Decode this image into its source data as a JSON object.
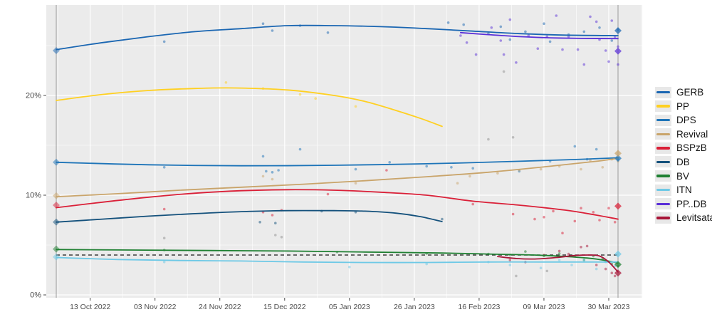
{
  "chart_data": {
    "type": "line",
    "title": "",
    "xlabel": "",
    "ylabel": "",
    "x_unit": "days since 02 Oct 2022 election",
    "x_domain_days": [
      0,
      182
    ],
    "ylim_pct": [
      0,
      29
    ],
    "grid": "on",
    "legend_position": "right",
    "y_ticks": [
      {
        "value": 0,
        "label": "0%"
      },
      {
        "value": 10,
        "label": "10%"
      },
      {
        "value": 20,
        "label": "20%"
      }
    ],
    "y_minor_values": [
      5,
      15,
      25
    ],
    "x_ticks": [
      {
        "day": 11,
        "label": "13 Oct 2022"
      },
      {
        "day": 32,
        "label": "03 Nov 2022"
      },
      {
        "day": 53,
        "label": "24 Nov 2022"
      },
      {
        "day": 74,
        "label": "15 Dec 2022"
      },
      {
        "day": 95,
        "label": "05 Jan 2023"
      },
      {
        "day": 116,
        "label": "26 Jan 2023"
      },
      {
        "day": 137,
        "label": "16 Feb 2023"
      },
      {
        "day": 158,
        "label": "09 Mar 2023"
      },
      {
        "day": 179,
        "label": "30 Mar 2023"
      }
    ],
    "election_day_lines": [
      0,
      182
    ],
    "threshold": {
      "value_pct": 4,
      "style": "dashed",
      "color": "#3d3d3d"
    },
    "colors": {
      "panel": "#ebebeb",
      "grid": "#ffffff",
      "vline": "#9b9b9b",
      "axis_text": "#4d4d4d"
    },
    "series": [
      {
        "name": "GERB",
        "color": "#1a66b2",
        "trend": [
          [
            0,
            24.6
          ],
          [
            15,
            25.3
          ],
          [
            30,
            25.9
          ],
          [
            45,
            26.4
          ],
          [
            60,
            26.7
          ],
          [
            75,
            27.0
          ],
          [
            90,
            27.0
          ],
          [
            105,
            26.9
          ],
          [
            120,
            26.7
          ],
          [
            135,
            26.45
          ],
          [
            150,
            26.2
          ],
          [
            165,
            26.05
          ],
          [
            182,
            26.0
          ]
        ],
        "points": [
          [
            35,
            25.4
          ],
          [
            67,
            27.2
          ],
          [
            70,
            26.5
          ],
          [
            79,
            27.0
          ],
          [
            88,
            26.3
          ],
          [
            127,
            27.3
          ],
          [
            132,
            27.1
          ],
          [
            140,
            26.2
          ],
          [
            144,
            26.9
          ],
          [
            147,
            25.6
          ],
          [
            152,
            26.4
          ],
          [
            158,
            27.2
          ],
          [
            160,
            25.4
          ],
          [
            166,
            26.1
          ],
          [
            171,
            26.4
          ],
          [
            176,
            26.8
          ],
          [
            180,
            25.5
          ],
          [
            182,
            26.6
          ]
        ],
        "start_diamond": 24.5,
        "end_diamond": 26.5
      },
      {
        "name": "PP",
        "color": "#ffd021",
        "trend": [
          [
            0,
            19.5
          ],
          [
            15,
            20.1
          ],
          [
            30,
            20.5
          ],
          [
            45,
            20.7
          ],
          [
            58,
            20.75
          ],
          [
            75,
            20.55
          ],
          [
            90,
            20.0
          ],
          [
            100,
            19.4
          ],
          [
            110,
            18.5
          ],
          [
            118,
            17.7
          ],
          [
            125,
            16.9
          ]
        ],
        "points": [
          [
            55,
            21.3
          ],
          [
            67,
            20.7
          ],
          [
            79,
            20.1
          ],
          [
            84,
            19.7
          ],
          [
            97,
            18.9
          ]
        ],
        "start_diamond": null,
        "end_diamond": null
      },
      {
        "name": "DPS",
        "color": "#1d74b8",
        "trend": [
          [
            0,
            13.3
          ],
          [
            30,
            13.05
          ],
          [
            60,
            12.95
          ],
          [
            90,
            13.0
          ],
          [
            120,
            13.15
          ],
          [
            150,
            13.4
          ],
          [
            170,
            13.6
          ],
          [
            182,
            13.75
          ]
        ],
        "points": [
          [
            35,
            12.8
          ],
          [
            67,
            13.9
          ],
          [
            68,
            12.4
          ],
          [
            70,
            12.3
          ],
          [
            72,
            12.5
          ],
          [
            79,
            14.6
          ],
          [
            97,
            12.6
          ],
          [
            108,
            13.3
          ],
          [
            120,
            12.9
          ],
          [
            128,
            12.8
          ],
          [
            135,
            12.7
          ],
          [
            150,
            12.4
          ],
          [
            160,
            13.4
          ],
          [
            168,
            14.9
          ],
          [
            172,
            13.6
          ],
          [
            175,
            14.6
          ],
          [
            182,
            13.6
          ]
        ],
        "start_diamond": 13.3,
        "end_diamond": 13.7
      },
      {
        "name": "Revival",
        "color": "#c9a46a",
        "trend": [
          [
            0,
            9.85
          ],
          [
            20,
            10.15
          ],
          [
            40,
            10.5
          ],
          [
            60,
            10.8
          ],
          [
            80,
            11.1
          ],
          [
            100,
            11.45
          ],
          [
            120,
            11.85
          ],
          [
            140,
            12.3
          ],
          [
            160,
            12.9
          ],
          [
            175,
            13.4
          ],
          [
            182,
            13.7
          ]
        ],
        "points": [
          [
            67,
            11.9
          ],
          [
            70,
            11.6
          ],
          [
            97,
            11.2
          ],
          [
            130,
            11.2
          ],
          [
            134,
            11.9
          ],
          [
            143,
            12.2
          ],
          [
            150,
            12.5
          ],
          [
            157,
            12.6
          ],
          [
            163,
            12.9
          ],
          [
            170,
            12.6
          ],
          [
            173,
            13.5
          ],
          [
            177,
            12.8
          ],
          [
            180,
            13.6
          ],
          [
            182,
            13.4
          ]
        ],
        "start_diamond": 9.95,
        "end_diamond": 14.2
      },
      {
        "name": "BSPzB",
        "color": "#da2038",
        "trend": [
          [
            0,
            8.75
          ],
          [
            15,
            9.3
          ],
          [
            30,
            9.8
          ],
          [
            45,
            10.2
          ],
          [
            60,
            10.45
          ],
          [
            75,
            10.55
          ],
          [
            90,
            10.5
          ],
          [
            105,
            10.3
          ],
          [
            120,
            10.0
          ],
          [
            135,
            9.4
          ],
          [
            150,
            9.0
          ],
          [
            165,
            8.5
          ],
          [
            175,
            8.0
          ],
          [
            182,
            7.6
          ]
        ],
        "points": [
          [
            35,
            8.6
          ],
          [
            67,
            8.3
          ],
          [
            70,
            8.0
          ],
          [
            73,
            8.5
          ],
          [
            88,
            10.1
          ],
          [
            107,
            12.5
          ],
          [
            135,
            9.1
          ],
          [
            148,
            8.1
          ],
          [
            155,
            7.6
          ],
          [
            158,
            7.8
          ],
          [
            161,
            8.4
          ],
          [
            164,
            6.2
          ],
          [
            168,
            7.4
          ],
          [
            170,
            8.7
          ],
          [
            174,
            8.3
          ],
          [
            176,
            7.5
          ],
          [
            179,
            8.7
          ],
          [
            181,
            7.3
          ]
        ],
        "start_diamond": 9.0,
        "end_diamond": 8.9
      },
      {
        "name": "DB",
        "color": "#14517c",
        "trend": [
          [
            0,
            7.3
          ],
          [
            15,
            7.6
          ],
          [
            30,
            7.9
          ],
          [
            45,
            8.15
          ],
          [
            60,
            8.35
          ],
          [
            75,
            8.45
          ],
          [
            90,
            8.45
          ],
          [
            100,
            8.4
          ],
          [
            110,
            8.2
          ],
          [
            118,
            7.85
          ],
          [
            125,
            7.35
          ]
        ],
        "points": [
          [
            66,
            7.3
          ],
          [
            71,
            7.2
          ],
          [
            86,
            8.4
          ],
          [
            97,
            8.3
          ],
          [
            125,
            7.6
          ]
        ],
        "start_diamond": 7.3,
        "end_diamond": null
      },
      {
        "name": "BV",
        "color": "#1f8032",
        "trend": [
          [
            0,
            4.55
          ],
          [
            25,
            4.5
          ],
          [
            50,
            4.45
          ],
          [
            75,
            4.4
          ],
          [
            100,
            4.3
          ],
          [
            125,
            4.2
          ],
          [
            140,
            4.1
          ],
          [
            155,
            4.0
          ],
          [
            165,
            3.85
          ],
          [
            172,
            3.7
          ],
          [
            177,
            3.5
          ],
          [
            182,
            3.2
          ]
        ],
        "points": [
          [
            35,
            4.5
          ],
          [
            91,
            4.3
          ],
          [
            120,
            4.15
          ],
          [
            140,
            4.1
          ],
          [
            147,
            4.0
          ],
          [
            152,
            4.35
          ],
          [
            158,
            3.9
          ],
          [
            163,
            4.15
          ],
          [
            168,
            3.9
          ],
          [
            171,
            3.5
          ],
          [
            174,
            3.9
          ],
          [
            177,
            3.6
          ],
          [
            180,
            3.1
          ],
          [
            182,
            2.9
          ]
        ],
        "start_diamond": 4.6,
        "end_diamond": 3.05
      },
      {
        "name": "ITN",
        "color": "#6ec9e6",
        "trend": [
          [
            0,
            3.75
          ],
          [
            20,
            3.55
          ],
          [
            40,
            3.45
          ],
          [
            60,
            3.4
          ],
          [
            80,
            3.3
          ],
          [
            100,
            3.25
          ],
          [
            120,
            3.25
          ],
          [
            140,
            3.3
          ],
          [
            160,
            3.3
          ],
          [
            182,
            3.3
          ]
        ],
        "points": [
          [
            35,
            3.3
          ],
          [
            95,
            2.8
          ],
          [
            120,
            3.1
          ],
          [
            140,
            3.3
          ],
          [
            147,
            3.0
          ],
          [
            152,
            3.3
          ],
          [
            157,
            2.7
          ],
          [
            163,
            3.5
          ],
          [
            167,
            3.0
          ],
          [
            171,
            3.5
          ],
          [
            175,
            2.6
          ],
          [
            178,
            3.3
          ],
          [
            181,
            2.9
          ]
        ],
        "start_diamond": 3.8,
        "end_diamond": 4.1
      },
      {
        "name": "PP..DB",
        "color": "#5a2fd8",
        "trend": [
          [
            131,
            26.3
          ],
          [
            140,
            26.1
          ],
          [
            150,
            25.9
          ],
          [
            160,
            25.78
          ],
          [
            170,
            25.72
          ],
          [
            182,
            25.7
          ]
        ],
        "points": [
          [
            131,
            26.0
          ],
          [
            133,
            25.3
          ],
          [
            136,
            24.1
          ],
          [
            141,
            26.8
          ],
          [
            144,
            25.5
          ],
          [
            145,
            24.1
          ],
          [
            147,
            27.6
          ],
          [
            149,
            23.3
          ],
          [
            153,
            26.0
          ],
          [
            156,
            24.7
          ],
          [
            159,
            25.9
          ],
          [
            162,
            28.0
          ],
          [
            164,
            24.6
          ],
          [
            166,
            25.9
          ],
          [
            169,
            24.6
          ],
          [
            171,
            23.1
          ],
          [
            173,
            27.9
          ],
          [
            175,
            27.4
          ],
          [
            176,
            25.6
          ],
          [
            178,
            24.5
          ],
          [
            179,
            23.4
          ],
          [
            180,
            27.5
          ],
          [
            181,
            25.9
          ],
          [
            182,
            23.1
          ],
          [
            182,
            24.9
          ]
        ],
        "start_diamond": null,
        "end_diamond": 24.45
      },
      {
        "name": "Levitsata",
        "color": "#a81538",
        "trend": [
          [
            143,
            3.85
          ],
          [
            149,
            3.65
          ],
          [
            155,
            3.6
          ],
          [
            162,
            3.75
          ],
          [
            168,
            3.95
          ],
          [
            173,
            4.0
          ],
          [
            176,
            3.9
          ],
          [
            179,
            3.3
          ],
          [
            182,
            2.3
          ]
        ],
        "points": [
          [
            147,
            3.5
          ],
          [
            152,
            3.3
          ],
          [
            158,
            4.0
          ],
          [
            163,
            4.4
          ],
          [
            166,
            4.1
          ],
          [
            170,
            4.8
          ],
          [
            172,
            4.9
          ],
          [
            175,
            3.0
          ],
          [
            178,
            2.6
          ],
          [
            180,
            2.2
          ],
          [
            181,
            1.9
          ]
        ],
        "start_diamond": null,
        "end_diamond": 2.2
      }
    ],
    "misc_points": {
      "color": "#8f8f8f",
      "points": [
        [
          35,
          5.7
        ],
        [
          71,
          6.0
        ],
        [
          73,
          5.8
        ],
        [
          140,
          15.6
        ],
        [
          148,
          15.8
        ],
        [
          145,
          22.4
        ],
        [
          149,
          1.9
        ],
        [
          159,
          2.4
        ]
      ]
    }
  },
  "legend": {
    "items_from": "chart_data.series"
  }
}
